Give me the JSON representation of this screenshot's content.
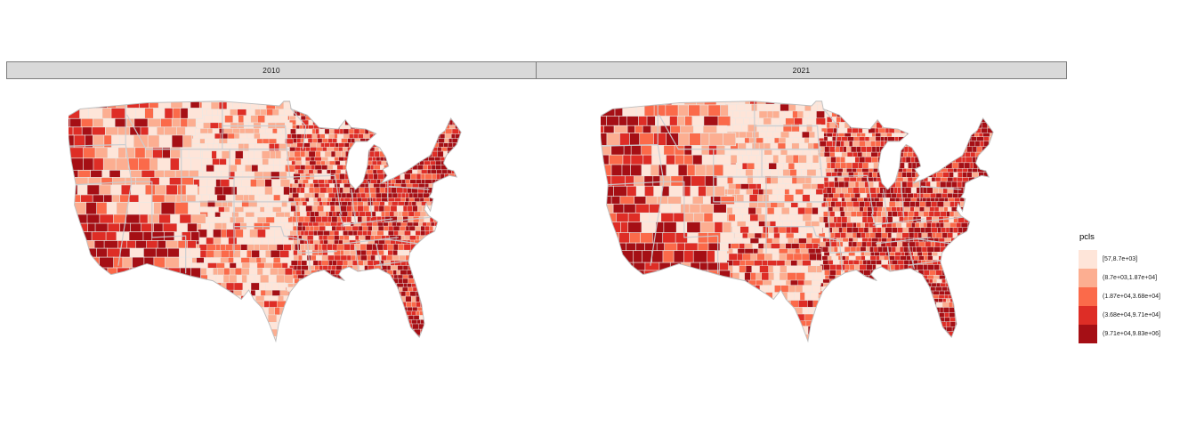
{
  "page": {
    "background": "#ffffff"
  },
  "facets": [
    {
      "label": "2010"
    },
    {
      "label": "2021"
    }
  ],
  "legend": {
    "title": "pcls",
    "entries": [
      {
        "label": "[57,8.7e+03]",
        "color": "#FEE5D9"
      },
      {
        "label": "(8.7e+03,1.87e+04]",
        "color": "#FCAE91"
      },
      {
        "label": "(1.87e+04,3.68e+04]",
        "color": "#FB6A4A"
      },
      {
        "label": "(3.68e+04,9.71e+04]",
        "color": "#DE2D26"
      },
      {
        "label": "(9.71e+04,9.83e+06]",
        "color": "#A50F15"
      }
    ]
  },
  "style": {
    "strip_bg": "#d9d9d9",
    "strip_border": "#7d7d7d",
    "county_border": "#e9e9e6",
    "state_border": "#c9cdd1",
    "outline": "#bdbdbd"
  },
  "chart_data": {
    "type": "choropleth",
    "geography": "US counties, contiguous United States",
    "facets": [
      "2010",
      "2021"
    ],
    "variable": "pcls",
    "classes": [
      {
        "bin": "[57,8.7e+03]",
        "color": "#FEE5D9"
      },
      {
        "bin": "(8.7e+03,1.87e+04]",
        "color": "#FCAE91"
      },
      {
        "bin": "(1.87e+04,3.68e+04]",
        "color": "#FB6A4A"
      },
      {
        "bin": "(3.68e+04,9.71e+04]",
        "color": "#DE2D26"
      },
      {
        "bin": "(9.71e+04,9.83e+06]",
        "color": "#A50F15"
      }
    ],
    "legend_position": "right",
    "pattern": {
      "high_value_regions": [
        "Pacific coast",
        "Arizona / Southwest",
        "Northeast corridor",
        "Michigan",
        "Florida",
        "metro areas"
      ],
      "low_value_regions": [
        "Great Plains",
        "eastern Montana",
        "west Texas",
        "interior Northwest"
      ]
    }
  }
}
